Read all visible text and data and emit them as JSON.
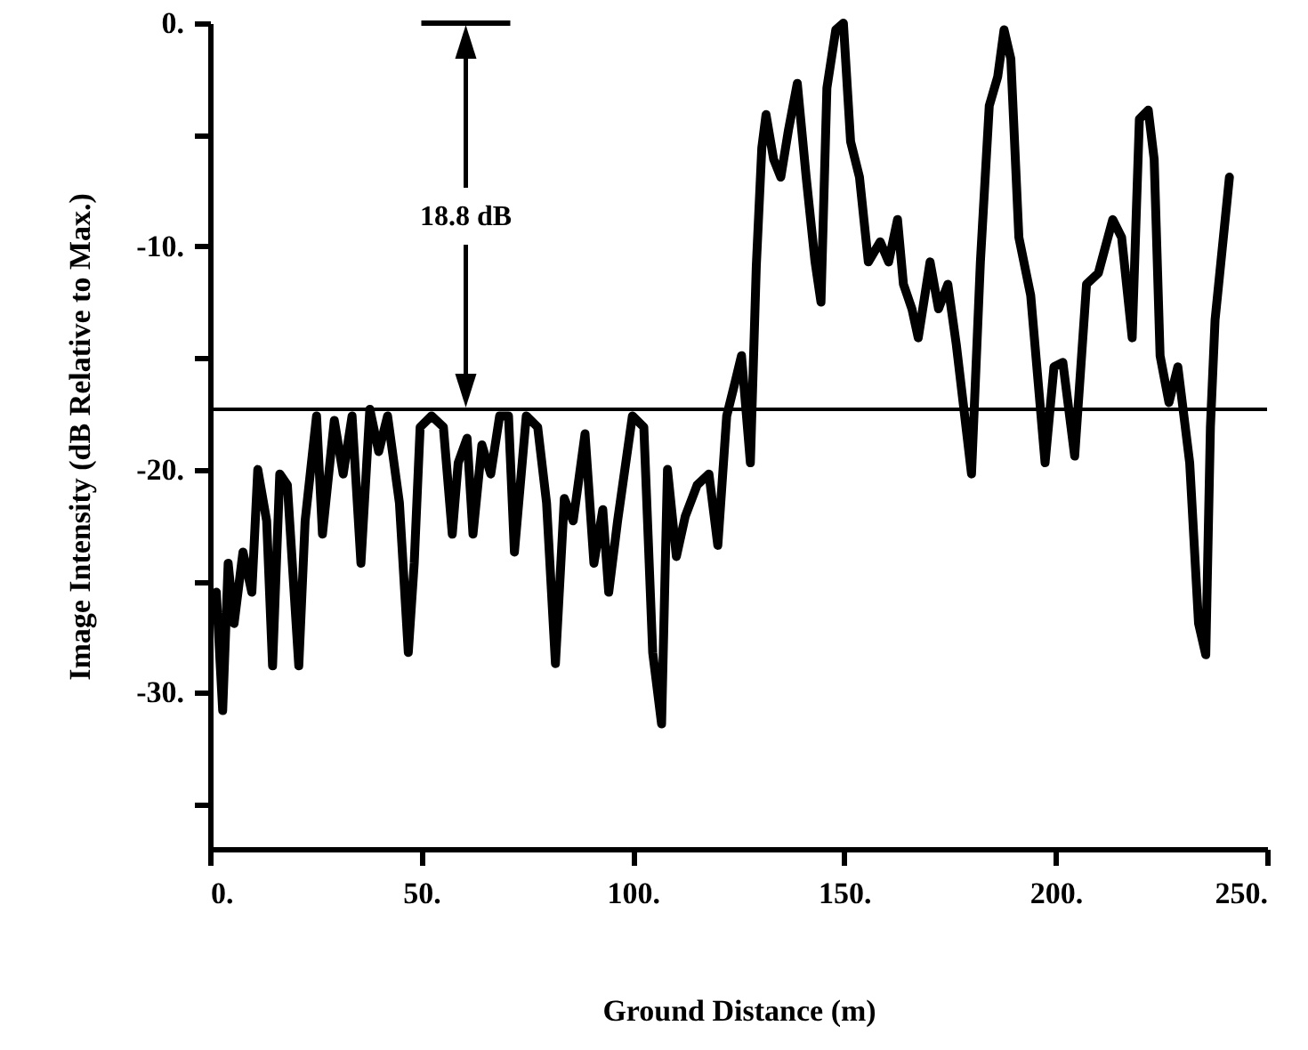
{
  "chart_data": {
    "type": "line",
    "xlabel": "Ground Distance (m)",
    "ylabel": "Image Intensity (dB Relative to Max.)",
    "x": [
      1.5,
      3,
      4.3,
      5.7,
      7.8,
      9.9,
      11.3,
      13.4,
      14.8,
      16.5,
      18.3,
      21,
      22.5,
      25.2,
      26.6,
      29.4,
      31.5,
      33.6,
      35.7,
      37.8,
      39.9,
      42,
      44.8,
      46.9,
      48.3,
      49.7,
      52.4,
      55.2,
      57.3,
      58.7,
      60.8,
      62.2,
      64.3,
      66.4,
      68.5,
      70.6,
      72,
      74.8,
      77.5,
      79.6,
      81.7,
      83.8,
      85.9,
      88.7,
      90.8,
      92.9,
      94.3,
      96.4,
      99.9,
      102.6,
      104.7,
      106.8,
      108.2,
      110.3,
      112.4,
      115.2,
      118,
      120.1,
      122.2,
      124.3,
      125.7,
      127.8,
      129.2,
      130.5,
      131.5,
      133.3,
      135,
      136.8,
      138.9,
      141,
      143.1,
      144.5,
      145.9,
      148,
      149.8,
      151.5,
      153.6,
      155.7,
      158.5,
      160.5,
      162.6,
      164,
      166,
      167.5,
      170.3,
      172.3,
      174.5,
      176.5,
      180.1,
      182.2,
      184.3,
      186.3,
      187.8,
      189.4,
      191.3,
      194.1,
      197.5,
      199.6,
      201.7,
      204.5,
      207.3,
      210.1,
      213.5,
      215.6,
      218.1,
      219.8,
      221.9,
      223.3,
      224.7,
      226.8,
      228.9,
      231.7,
      233.8,
      235.5,
      236.6,
      237.7,
      239.4,
      241.1
    ],
    "series": [
      {
        "color": "#000000",
        "values": [
          -25.5,
          -30.8,
          -24.2,
          -26.9,
          -23.7,
          -25.5,
          -20,
          -22.3,
          -28.8,
          -20.2,
          -20.7,
          -28.8,
          -22.3,
          -17.6,
          -22.9,
          -17.8,
          -20.2,
          -17.6,
          -24.2,
          -17.3,
          -19.2,
          -17.6,
          -21.5,
          -28.2,
          -24.2,
          -18.1,
          -17.6,
          -18.1,
          -22.9,
          -19.7,
          -18.6,
          -22.9,
          -18.9,
          -20.2,
          -17.6,
          -17.6,
          -23.7,
          -17.6,
          -18.1,
          -21.5,
          -28.7,
          -21.3,
          -22.3,
          -18.4,
          -24.2,
          -21.8,
          -25.5,
          -22.3,
          -17.6,
          -18.1,
          -28.2,
          -31.4,
          -20,
          -23.9,
          -22.1,
          -20.7,
          -20.2,
          -23.4,
          -17.6,
          -16,
          -14.9,
          -19.7,
          -10.9,
          -5.6,
          -4.1,
          -6.1,
          -6.9,
          -4.8,
          -2.7,
          -6.9,
          -10.7,
          -12.5,
          -2.9,
          -0.3,
          0,
          -5.3,
          -6.9,
          -10.7,
          -9.8,
          -10.7,
          -8.8,
          -11.7,
          -12.8,
          -14.1,
          -10.7,
          -12.8,
          -11.7,
          -14.4,
          -20.2,
          -10.7,
          -3.7,
          -2.4,
          -0.3,
          -1.6,
          -9.6,
          -12.2,
          -19.7,
          -15.4,
          -15.2,
          -19.4,
          -11.7,
          -11.2,
          -8.8,
          -9.6,
          -14.1,
          -4.3,
          -3.9,
          -6.1,
          -14.9,
          -17,
          -15.4,
          -19.7,
          -26.9,
          -28.3,
          -18.1,
          -13.3,
          -10.1,
          -6.9
        ]
      }
    ],
    "xlim": [
      0,
      250
    ],
    "xticks": [
      {
        "value": 0,
        "label": "0."
      },
      {
        "value": 50,
        "label": "50."
      },
      {
        "value": 100,
        "label": "100."
      },
      {
        "value": 150,
        "label": "150."
      },
      {
        "value": 200,
        "label": "200."
      },
      {
        "value": 250,
        "label": "250."
      }
    ],
    "ylim": [
      -37,
      0
    ],
    "yticks": [
      {
        "value": 0,
        "label": "0."
      },
      {
        "value": -5,
        "label": null
      },
      {
        "value": -10,
        "label": "-10."
      },
      {
        "value": -15,
        "label": null
      },
      {
        "value": -20,
        "label": "-20."
      },
      {
        "value": -25,
        "label": null
      },
      {
        "value": -30,
        "label": "-30."
      },
      {
        "value": -35,
        "label": null
      }
    ],
    "ref_lines": [
      {
        "axis": "y",
        "value": -17.3,
        "color": "#000000"
      }
    ],
    "annotations": [
      "18.8 dB"
    ],
    "grid": false,
    "marker": "none",
    "line_style": "solid"
  }
}
